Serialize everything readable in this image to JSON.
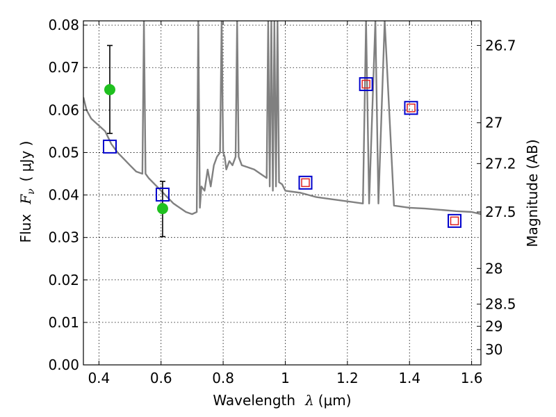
{
  "chart_data": {
    "type": "line",
    "xlabel_prefix": "Wavelength",
    "xlabel_math": "λ",
    "xlabel_unit": "(μm)",
    "ylabel_prefix": "Flux",
    "ylabel_math": "F",
    "ylabel_sub": "ν",
    "ylabel_unit": "( μJy )",
    "y2label": "Magnitude (AB)",
    "xlim": [
      0.35,
      1.63
    ],
    "ylim": [
      0.0,
      0.081
    ],
    "grid": true,
    "x_ticks": [
      0.4,
      0.6,
      0.8,
      1.0,
      1.2,
      1.4,
      1.6
    ],
    "x_tick_labels": [
      "0.4",
      "0.6",
      "0.8",
      "1",
      "1.2",
      "1.4",
      "1.6"
    ],
    "y_ticks": [
      0.0,
      0.01,
      0.02,
      0.03,
      0.04,
      0.05,
      0.06,
      0.07,
      0.08
    ],
    "y_tick_labels": [
      "0.00",
      "0.01",
      "0.02",
      "0.03",
      "0.04",
      "0.05",
      "0.06",
      "0.07",
      "0.08"
    ],
    "mag_ticks": [
      {
        "label": "26.7",
        "flux": 0.0752
      },
      {
        "label": "27",
        "flux": 0.057
      },
      {
        "label": "27.2",
        "flux": 0.0474
      },
      {
        "label": "27.5",
        "flux": 0.036
      },
      {
        "label": "28",
        "flux": 0.0227
      },
      {
        "label": "28.5",
        "flux": 0.0143
      },
      {
        "label": "29",
        "flux": 0.0091
      },
      {
        "label": "30",
        "flux": 0.0036
      }
    ],
    "series": [
      {
        "kind": "sed-model",
        "color": "#808080",
        "x": [
          0.35,
          0.36,
          0.375,
          0.39,
          0.405,
          0.42,
          0.44,
          0.46,
          0.48,
          0.5,
          0.52,
          0.54,
          0.545,
          0.55,
          0.56,
          0.58,
          0.6,
          0.62,
          0.64,
          0.66,
          0.68,
          0.7,
          0.715,
          0.72,
          0.725,
          0.73,
          0.74,
          0.75,
          0.76,
          0.77,
          0.78,
          0.79,
          0.795,
          0.8,
          0.805,
          0.81,
          0.82,
          0.83,
          0.84,
          0.845,
          0.85,
          0.86,
          0.88,
          0.9,
          0.92,
          0.94,
          0.945,
          0.95,
          0.955,
          0.96,
          0.965,
          0.97,
          0.975,
          0.98,
          0.99,
          1.0,
          1.05,
          1.1,
          1.15,
          1.2,
          1.25,
          1.26,
          1.27,
          1.29,
          1.3,
          1.32,
          1.35,
          1.4,
          1.45,
          1.5,
          1.55,
          1.6,
          1.63
        ],
        "y": [
          0.063,
          0.06,
          0.058,
          0.057,
          0.056,
          0.055,
          0.052,
          0.05,
          0.0485,
          0.047,
          0.0455,
          0.045,
          0.081,
          0.045,
          0.044,
          0.0425,
          0.041,
          0.0395,
          0.038,
          0.037,
          0.036,
          0.0355,
          0.036,
          0.081,
          0.037,
          0.042,
          0.041,
          0.046,
          0.042,
          0.047,
          0.049,
          0.05,
          0.081,
          0.05,
          0.049,
          0.046,
          0.048,
          0.047,
          0.049,
          0.081,
          0.049,
          0.047,
          0.0465,
          0.046,
          0.045,
          0.044,
          0.081,
          0.042,
          0.081,
          0.041,
          0.081,
          0.042,
          0.081,
          0.043,
          0.0425,
          0.041,
          0.0405,
          0.0395,
          0.039,
          0.0385,
          0.038,
          0.081,
          0.038,
          0.081,
          0.038,
          0.081,
          0.0375,
          0.037,
          0.0368,
          0.0365,
          0.0362,
          0.036,
          0.0355
        ]
      },
      {
        "kind": "observed",
        "color": "#1fc01f",
        "x": [
          0.435,
          0.605
        ],
        "y": [
          0.0648,
          0.0368
        ],
        "yerr_low": [
          0.0545,
          0.0302
        ],
        "yerr_high": [
          0.0752,
          0.0432
        ]
      },
      {
        "kind": "model-bandpass-blue",
        "color": "#0000cc",
        "x": [
          0.435,
          0.605,
          1.065,
          1.26,
          1.405,
          1.545
        ],
        "y": [
          0.0514,
          0.0401,
          0.0429,
          0.0661,
          0.0605,
          0.0339
        ]
      },
      {
        "kind": "model-bandpass-red",
        "color": "#dd2222",
        "x": [
          1.065,
          1.26,
          1.405,
          1.545
        ],
        "y": [
          0.0429,
          0.0661,
          0.0605,
          0.0339
        ]
      }
    ]
  }
}
